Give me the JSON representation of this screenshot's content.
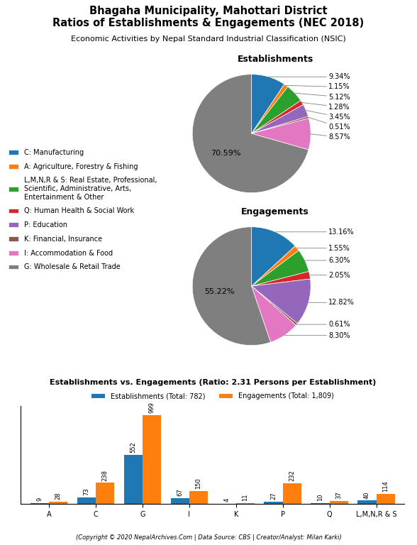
{
  "title": "Bhagaha Municipality, Mahottari District\nRatios of Establishments & Engagements (NEC 2018)",
  "subtitle": "Economic Activities by Nepal Standard Industrial Classification (NSIC)",
  "annotations": [
    "(Copyright © 2020 NepalArchives.Com | Data Source: CBS | Creator/Analyst: Milan Karki)"
  ],
  "chart_data": [
    {
      "type": "pie",
      "title": "Establishments",
      "categories": [
        "C: Manufacturing",
        "A: Agriculture, Forestry & Fishing",
        "L,M,N,R & S: Real Estate, Professional,\nScientific, Administrative, Arts,\nEntertainment & Other",
        "Q: Human Health & Social Work",
        "P: Education",
        "K: Financial, Insurance",
        "I: Accommodation & Food",
        "G: Wholesale & Retail Trade"
      ],
      "values": [
        9.34,
        1.15,
        5.12,
        1.28,
        3.45,
        0.51,
        8.57,
        70.59
      ],
      "value_labels": [
        "9.34%",
        "1.15%",
        "5.12%",
        "1.28%",
        "3.45%",
        "0.51%",
        "8.57%",
        "70.59%"
      ],
      "data_labels": true,
      "legend": "center left"
    },
    {
      "type": "pie",
      "title": "Engagements",
      "categories": [
        "C: Manufacturing",
        "A: Agriculture, Forestry & Fishing",
        "L,M,N,R & S: Real Estate, Professional,\nScientific, Administrative, Arts,\nEntertainment & Other",
        "Q: Human Health & Social Work",
        "P: Education",
        "K: Financial, Insurance",
        "I: Accommodation & Food",
        "G: Wholesale & Retail Trade"
      ],
      "values": [
        13.16,
        1.55,
        6.3,
        2.05,
        12.82,
        0.61,
        8.3,
        55.22
      ],
      "value_labels": [
        "13.16%",
        "1.55%",
        "6.30%",
        "2.05%",
        "12.82%",
        "0.61%",
        "8.30%",
        "55.22%"
      ],
      "data_labels": true
    },
    {
      "type": "bar",
      "title": "Establishments vs. Engagements (Ratio: 2.31 Persons per Establishment)",
      "categories": [
        "A",
        "C",
        "G",
        "I",
        "K",
        "P",
        "Q",
        "L,M,N,R & S"
      ],
      "series": [
        {
          "name": "Establishments (Total: 782)",
          "values": [
            9,
            73,
            552,
            67,
            4,
            27,
            10,
            40
          ]
        },
        {
          "name": "Engagements (Total: 1,809)",
          "values": [
            28,
            238,
            999,
            150,
            11,
            232,
            37,
            114
          ]
        }
      ],
      "ylim": [
        0,
        1100
      ],
      "tick_labels": "x",
      "data_labels": true,
      "legend": "lower center"
    }
  ]
}
